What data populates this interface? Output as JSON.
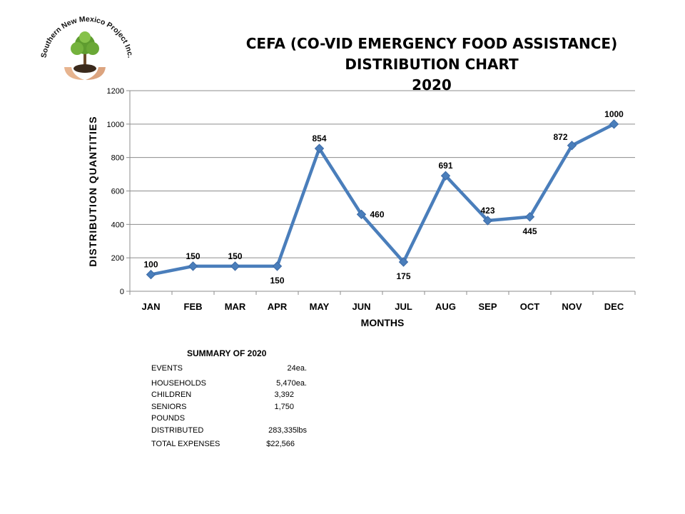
{
  "logo": {
    "text": "Southern New Mexico Project Inc."
  },
  "title": {
    "line1": "CEFA (CO-VID EMERGENCY FOOD ASSISTANCE)",
    "line2": "DISTRIBUTION CHART",
    "line3": "2020"
  },
  "chart_data": {
    "type": "line",
    "categories": [
      "JAN",
      "FEB",
      "MAR",
      "APR",
      "MAY",
      "JUN",
      "JUL",
      "AUG",
      "SEP",
      "OCT",
      "NOV",
      "DEC"
    ],
    "values": [
      100,
      150,
      150,
      150,
      854,
      460,
      175,
      691,
      423,
      445,
      872,
      1000
    ],
    "data_labels": [
      "100",
      "150",
      "150",
      "150",
      "854",
      "460",
      "175",
      "691",
      "423",
      "445",
      "872",
      "1000"
    ],
    "xlabel": "MONTHS",
    "ylabel": "DISTRIBUTION QUANTITIES",
    "ylim": [
      0,
      1200
    ],
    "yticks": [
      "0",
      "200",
      "400",
      "600",
      "800",
      "1000",
      "1200"
    ],
    "grid": true,
    "legend": "none",
    "line_color": "#4a7ebb"
  },
  "summary": {
    "heading": "SUMMARY OF 2020",
    "events_label": "EVENTS",
    "events_value": "24ea.",
    "households_label": "HOUSEHOLDS",
    "households_value": "5,470ea.",
    "children_label": "CHILDREN",
    "children_value": "3,392",
    "seniors_label": "SENIORS",
    "seniors_value": "1,750",
    "pounds_label_1": "POUNDS",
    "pounds_label_2": "DISTRIBUTED",
    "pounds_value": "283,335lbs",
    "expenses_label": "TOTAL EXPENSES",
    "expenses_value": "$22,566"
  }
}
